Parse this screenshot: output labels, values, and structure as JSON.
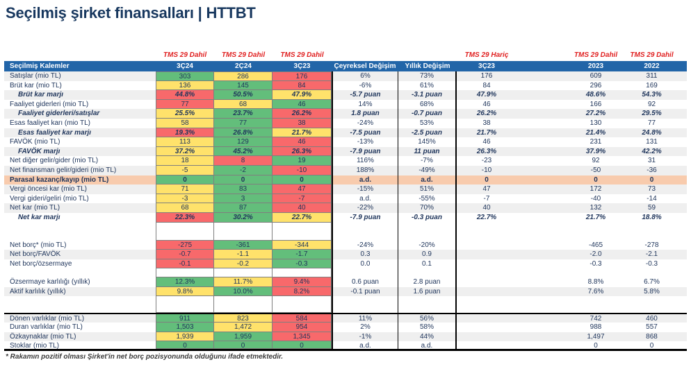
{
  "title": "Seçilmiş şirket finansalları | HTTBT",
  "colors": {
    "g": "#63BE7B",
    "y": "#FFE26B",
    "r": "#F8696B",
    "p": "#F8CBAD",
    "header_blue": "#2265A8",
    "tms_red": "#E02020",
    "text_navy": "#20365C"
  },
  "table": {
    "tms_labels": {
      "q1": "TMS 29 Dahil",
      "q2": "TMS 29 Dahil",
      "q3": "TMS 29 Dahil",
      "haric": "TMS 29 Hariç",
      "y2023": "TMS 29 Dahil",
      "y2022": "TMS 29 Dahil"
    },
    "headers": {
      "label": "Seçilmiş Kalemler",
      "q1": "3Ç24",
      "q2": "2Ç24",
      "q3": "3Ç23",
      "chg_q": "Çeyreksel Değişim",
      "chg_y": "Yıllık Değişim",
      "haric": "3Ç23",
      "y2023": "2023",
      "y2022": "2022"
    },
    "rows": [
      {
        "label": "Satışlar (mio TL)",
        "type": "data",
        "shade": true,
        "q": [
          [
            "303",
            "g"
          ],
          [
            "286",
            "y"
          ],
          [
            "176",
            "r"
          ]
        ],
        "chg": [
          "6%",
          "73%"
        ],
        "right": [
          "176",
          "609",
          "311"
        ]
      },
      {
        "label": "Brüt kar (mio TL)",
        "type": "data",
        "shade": false,
        "q": [
          [
            "136",
            "y"
          ],
          [
            "145",
            "g"
          ],
          [
            "84",
            "r"
          ]
        ],
        "chg": [
          "-6%",
          "61%"
        ],
        "right": [
          "84",
          "296",
          "169"
        ]
      },
      {
        "label": "Brüt kar marjı",
        "type": "margin",
        "shade": true,
        "q": [
          [
            "44.8%",
            "r"
          ],
          [
            "50.5%",
            "g"
          ],
          [
            "47.9%",
            "y"
          ]
        ],
        "chg": [
          "-5.7 puan",
          "-3.1 puan"
        ],
        "right": [
          "47.9%",
          "48.6%",
          "54.3%"
        ]
      },
      {
        "label": "Faaliyet giderleri (mio TL)",
        "type": "data",
        "shade": false,
        "q": [
          [
            "77",
            "r"
          ],
          [
            "68",
            "y"
          ],
          [
            "46",
            "g"
          ]
        ],
        "chg": [
          "14%",
          "68%"
        ],
        "right": [
          "46",
          "166",
          "92"
        ]
      },
      {
        "label": "Faaliyet giderleri/satışlar",
        "type": "margin",
        "shade": true,
        "q": [
          [
            "25.5%",
            "y"
          ],
          [
            "23.7%",
            "g"
          ],
          [
            "26.2%",
            "r"
          ]
        ],
        "chg": [
          "1.8 puan",
          "-0.7 puan"
        ],
        "right": [
          "26.2%",
          "27.2%",
          "29.5%"
        ]
      },
      {
        "label": "Esas faaliyet karı (mio TL)",
        "type": "data",
        "shade": false,
        "q": [
          [
            "58",
            "y"
          ],
          [
            "77",
            "g"
          ],
          [
            "38",
            "r"
          ]
        ],
        "chg": [
          "-24%",
          "53%"
        ],
        "right": [
          "38",
          "130",
          "77"
        ]
      },
      {
        "label": "Esas faaliyet kar marjı",
        "type": "margin",
        "shade": true,
        "q": [
          [
            "19.3%",
            "r"
          ],
          [
            "26.8%",
            "g"
          ],
          [
            "21.7%",
            "y"
          ]
        ],
        "chg": [
          "-7.5 puan",
          "-2.5 puan"
        ],
        "right": [
          "21.7%",
          "21.4%",
          "24.8%"
        ]
      },
      {
        "label": "FAVÖK (mio TL)",
        "type": "data",
        "shade": false,
        "q": [
          [
            "113",
            "y"
          ],
          [
            "129",
            "g"
          ],
          [
            "46",
            "r"
          ]
        ],
        "chg": [
          "-13%",
          "145%"
        ],
        "right": [
          "46",
          "231",
          "131"
        ]
      },
      {
        "label": "FAVÖK marjı",
        "type": "margin",
        "shade": true,
        "q": [
          [
            "37.2%",
            "y"
          ],
          [
            "45.2%",
            "g"
          ],
          [
            "26.3%",
            "r"
          ]
        ],
        "chg": [
          "-7.9 puan",
          "11 puan"
        ],
        "right": [
          "26.3%",
          "37.9%",
          "42.2%"
        ]
      },
      {
        "label": "Net diğer gelir/gider (mio TL)",
        "type": "data",
        "shade": false,
        "q": [
          [
            "18",
            "y"
          ],
          [
            "8",
            "r"
          ],
          [
            "19",
            "g"
          ]
        ],
        "chg": [
          "116%",
          "-7%"
        ],
        "right": [
          "-23",
          "92",
          "31"
        ]
      },
      {
        "label": "Net finansman gelir/gideri (mio TL)",
        "type": "data",
        "shade": true,
        "q": [
          [
            "-5",
            "y"
          ],
          [
            "-2",
            "g"
          ],
          [
            "-10",
            "r"
          ]
        ],
        "chg": [
          "188%",
          "-49%"
        ],
        "right": [
          "-10",
          "-50",
          "-36"
        ]
      },
      {
        "label": "Parasal kazanç/kayıp (mio TL)",
        "type": "parasal",
        "shade": false,
        "q": [
          [
            "0",
            "g"
          ],
          [
            "0",
            "g"
          ],
          [
            "0",
            "g"
          ]
        ],
        "chg": [
          "a.d.",
          "a.d."
        ],
        "right": [
          "0",
          "0",
          "0"
        ]
      },
      {
        "label": "Vergi öncesi kar (mio TL)",
        "type": "data",
        "shade": true,
        "q": [
          [
            "71",
            "y"
          ],
          [
            "83",
            "g"
          ],
          [
            "47",
            "r"
          ]
        ],
        "chg": [
          "-15%",
          "51%"
        ],
        "right": [
          "47",
          "172",
          "73"
        ]
      },
      {
        "label": "Vergi gideri/geliri (mio TL)",
        "type": "data",
        "shade": false,
        "q": [
          [
            "-3",
            "y"
          ],
          [
            "3",
            "g"
          ],
          [
            "-7",
            "r"
          ]
        ],
        "chg": [
          "a.d.",
          "-55%"
        ],
        "right": [
          "-7",
          "-40",
          "-14"
        ]
      },
      {
        "label": "Net kar (mio TL)",
        "type": "data",
        "shade": true,
        "q": [
          [
            "68",
            "y"
          ],
          [
            "87",
            "g"
          ],
          [
            "40",
            "r"
          ]
        ],
        "chg": [
          "-22%",
          "70%"
        ],
        "right": [
          "40",
          "132",
          "59"
        ]
      },
      {
        "label": "Net kar marjı",
        "type": "margin",
        "shade": false,
        "q": [
          [
            "22.3%",
            "r"
          ],
          [
            "30.2%",
            "g"
          ],
          [
            "22.7%",
            "y"
          ]
        ],
        "chg": [
          "-7.9 puan",
          "-0.3 puan"
        ],
        "right": [
          "22.7%",
          "21.7%",
          "18.8%"
        ]
      },
      {
        "type": "gap",
        "h": 26
      },
      {
        "label": "Net borç* (mio TL)",
        "type": "data",
        "shade": false,
        "q": [
          [
            "-275",
            "r"
          ],
          [
            "-361",
            "g"
          ],
          [
            "-344",
            "y"
          ]
        ],
        "chg": [
          "-24%",
          "-20%"
        ],
        "right": [
          "",
          "-465",
          "-278"
        ]
      },
      {
        "label": "Net borç/FAVÖK",
        "type": "data",
        "shade": true,
        "q": [
          [
            "-0.7",
            "r"
          ],
          [
            "-1.1",
            "y"
          ],
          [
            "-1.7",
            "g"
          ]
        ],
        "chg": [
          "0.3",
          "0.9"
        ],
        "right": [
          "",
          "-2.0",
          "-2.1"
        ]
      },
      {
        "label": "Net borç/özsermaye",
        "type": "data",
        "shade": false,
        "q": [
          [
            "-0.1",
            "r"
          ],
          [
            "-0.2",
            "y"
          ],
          [
            "-0.3",
            "g"
          ]
        ],
        "chg": [
          "0.0",
          "0.1"
        ],
        "right": [
          "",
          "-0.3",
          "-0.3"
        ]
      },
      {
        "type": "gap",
        "h": 13
      },
      {
        "label": "Özsermaye karlılığı (yıllık)",
        "type": "data",
        "shade": false,
        "q": [
          [
            "12.3%",
            "g"
          ],
          [
            "11.7%",
            "y"
          ],
          [
            "9.4%",
            "r"
          ]
        ],
        "chg": [
          "0.6 puan",
          "2.8 puan"
        ],
        "right": [
          "",
          "8.8%",
          "6.7%"
        ]
      },
      {
        "label": "Aktif karlılık (yıllık)",
        "type": "data",
        "shade": true,
        "q": [
          [
            "9.8%",
            "y"
          ],
          [
            "10.0%",
            "g"
          ],
          [
            "8.2%",
            "r"
          ]
        ],
        "chg": [
          "-0.1 puan",
          "1.6 puan"
        ],
        "right": [
          "",
          "7.6%",
          "5.8%"
        ]
      },
      {
        "type": "gap",
        "h": 24
      },
      {
        "label": "Dönen varlıklar (mio TL)",
        "type": "data",
        "shade": true,
        "border_top": true,
        "q": [
          [
            "911",
            "g"
          ],
          [
            "823",
            "y"
          ],
          [
            "584",
            "r"
          ]
        ],
        "chg": [
          "11%",
          "56%"
        ],
        "right": [
          "",
          "742",
          "460"
        ]
      },
      {
        "label": "Duran varlıklar (mio TL)",
        "type": "data",
        "shade": false,
        "q": [
          [
            "1,503",
            "g"
          ],
          [
            "1,472",
            "y"
          ],
          [
            "954",
            "r"
          ]
        ],
        "chg": [
          "2%",
          "58%"
        ],
        "right": [
          "",
          "988",
          "557"
        ]
      },
      {
        "label": "Özkaynaklar (mio TL)",
        "type": "data",
        "shade": true,
        "q": [
          [
            "1,939",
            "y"
          ],
          [
            "1,959",
            "g"
          ],
          [
            "1,345",
            "r"
          ]
        ],
        "chg": [
          "-1%",
          "44%"
        ],
        "right": [
          "",
          "1,497",
          "868"
        ]
      },
      {
        "label": "Stoklar (mio TL)",
        "type": "data",
        "shade": false,
        "border_bottom": true,
        "q": [
          [
            "0",
            "g"
          ],
          [
            "0",
            "g"
          ],
          [
            "0",
            "g"
          ]
        ],
        "chg": [
          "a.d.",
          "a.d."
        ],
        "right": [
          "",
          "0",
          "0"
        ]
      }
    ],
    "footnote": "* Rakamın pozitif olması Şirket'in net borç pozisyonunda olduğunu ifade etmektedir."
  }
}
